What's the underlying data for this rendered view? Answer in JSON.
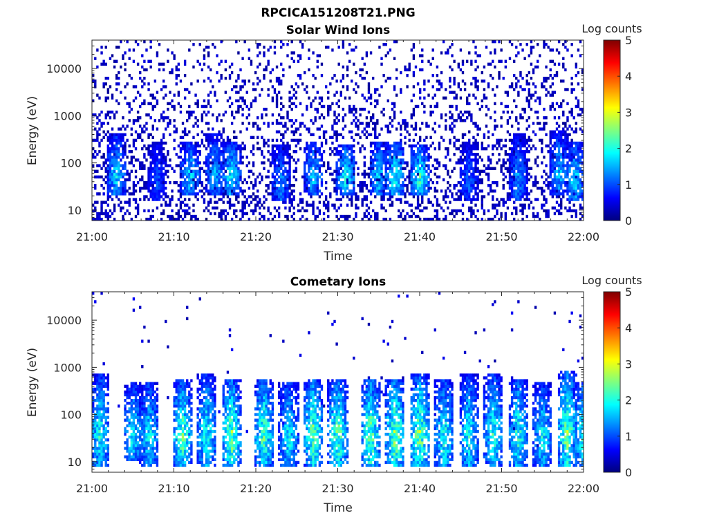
{
  "figure": {
    "filename": "RPCICA151208T21.PNG"
  },
  "colormap": {
    "name": "jet",
    "stops": [
      "#00007f",
      "#0000ff",
      "#007fff",
      "#00ffff",
      "#7fff7f",
      "#ffff00",
      "#ff7f00",
      "#ff0000",
      "#7f0000"
    ]
  },
  "chart_data": [
    {
      "type": "heatmap",
      "title": "Solar Wind Ions",
      "xlabel": "Time",
      "ylabel": "Energy (eV)",
      "yscale": "log",
      "xlim": [
        "21:00",
        "22:00"
      ],
      "ylim": [
        6,
        40000
      ],
      "x_ticks": [
        "21:00",
        "21:10",
        "21:20",
        "21:30",
        "21:40",
        "21:50",
        "22:00"
      ],
      "y_ticks": [
        10,
        100,
        1000,
        10000
      ],
      "y_tick_labels": [
        "10",
        "100",
        "1000",
        "10000"
      ],
      "colorbar": {
        "label": "Log counts",
        "min": 0,
        "max": 5,
        "ticks": [
          "0",
          "1",
          "2",
          "3",
          "4",
          "5"
        ]
      },
      "seed": 7,
      "background": {
        "density_low_energy": 0.32,
        "density_high_energy": 0.12,
        "level": 0.1
      },
      "bursts": [
        {
          "t": "21:03",
          "peak": 2.0,
          "e_low": 20,
          "e_high": 400
        },
        {
          "t": "21:08",
          "peak": 1.2,
          "e_low": 15,
          "e_high": 300
        },
        {
          "t": "21:12",
          "peak": 2.0,
          "e_low": 20,
          "e_high": 300
        },
        {
          "t": "21:15",
          "peak": 1.8,
          "e_low": 20,
          "e_high": 400
        },
        {
          "t": "21:17",
          "peak": 2.2,
          "e_low": 20,
          "e_high": 300
        },
        {
          "t": "21:23",
          "peak": 1.6,
          "e_low": 15,
          "e_high": 250
        },
        {
          "t": "21:27",
          "peak": 1.9,
          "e_low": 20,
          "e_high": 300
        },
        {
          "t": "21:31",
          "peak": 2.3,
          "e_low": 20,
          "e_high": 250
        },
        {
          "t": "21:35",
          "peak": 2.0,
          "e_low": 20,
          "e_high": 300
        },
        {
          "t": "21:37",
          "peak": 2.4,
          "e_low": 20,
          "e_high": 300
        },
        {
          "t": "21:40",
          "peak": 2.4,
          "e_low": 20,
          "e_high": 250
        },
        {
          "t": "21:46",
          "peak": 1.3,
          "e_low": 15,
          "e_high": 300
        },
        {
          "t": "21:52",
          "peak": 1.6,
          "e_low": 15,
          "e_high": 400
        },
        {
          "t": "21:57",
          "peak": 1.8,
          "e_low": 20,
          "e_high": 500
        },
        {
          "t": "21:59",
          "peak": 2.1,
          "e_low": 15,
          "e_high": 300
        }
      ]
    },
    {
      "type": "heatmap",
      "title": "Cometary Ions",
      "xlabel": "Time",
      "ylabel": "Energy (eV)",
      "yscale": "log",
      "xlim": [
        "21:00",
        "22:00"
      ],
      "ylim": [
        6,
        40000
      ],
      "x_ticks": [
        "21:00",
        "21:10",
        "21:20",
        "21:30",
        "21:40",
        "21:50",
        "22:00"
      ],
      "y_ticks": [
        10,
        100,
        1000,
        10000
      ],
      "y_tick_labels": [
        "10",
        "100",
        "1000",
        "10000"
      ],
      "colorbar": {
        "label": "Log counts",
        "min": 0,
        "max": 5,
        "ticks": [
          "0",
          "1",
          "2",
          "3",
          "4",
          "5"
        ]
      },
      "seed": 23,
      "background": {
        "density_low_energy": 0.0,
        "density_high_energy": 0.012,
        "level": 0.2
      },
      "bursts": [
        {
          "t": "21:01",
          "peak": 2.4,
          "e_low": 8,
          "e_high": 700
        },
        {
          "t": "21:05",
          "peak": 2.2,
          "e_low": 10,
          "e_high": 500
        },
        {
          "t": "21:07",
          "peak": 2.2,
          "e_low": 8,
          "e_high": 500
        },
        {
          "t": "21:11",
          "peak": 2.7,
          "e_low": 8,
          "e_high": 600
        },
        {
          "t": "21:14",
          "peak": 2.4,
          "e_low": 8,
          "e_high": 700
        },
        {
          "t": "21:17",
          "peak": 2.9,
          "e_low": 8,
          "e_high": 600
        },
        {
          "t": "21:21",
          "peak": 2.7,
          "e_low": 8,
          "e_high": 600
        },
        {
          "t": "21:24",
          "peak": 2.3,
          "e_low": 8,
          "e_high": 500
        },
        {
          "t": "21:27",
          "peak": 2.8,
          "e_low": 8,
          "e_high": 600
        },
        {
          "t": "21:30",
          "peak": 2.8,
          "e_low": 8,
          "e_high": 600
        },
        {
          "t": "21:34",
          "peak": 2.9,
          "e_low": 8,
          "e_high": 600
        },
        {
          "t": "21:37",
          "peak": 3.0,
          "e_low": 8,
          "e_high": 600
        },
        {
          "t": "21:40",
          "peak": 3.0,
          "e_low": 8,
          "e_high": 700
        },
        {
          "t": "21:43",
          "peak": 2.4,
          "e_low": 8,
          "e_high": 600
        },
        {
          "t": "21:46",
          "peak": 2.3,
          "e_low": 8,
          "e_high": 700
        },
        {
          "t": "21:49",
          "peak": 2.4,
          "e_low": 8,
          "e_high": 700
        },
        {
          "t": "21:52",
          "peak": 2.5,
          "e_low": 8,
          "e_high": 600
        },
        {
          "t": "21:55",
          "peak": 2.2,
          "e_low": 8,
          "e_high": 500
        },
        {
          "t": "21:58",
          "peak": 2.9,
          "e_low": 8,
          "e_high": 900
        },
        {
          "t": "22:00",
          "peak": 2.5,
          "e_low": 8,
          "e_high": 500
        }
      ]
    }
  ]
}
